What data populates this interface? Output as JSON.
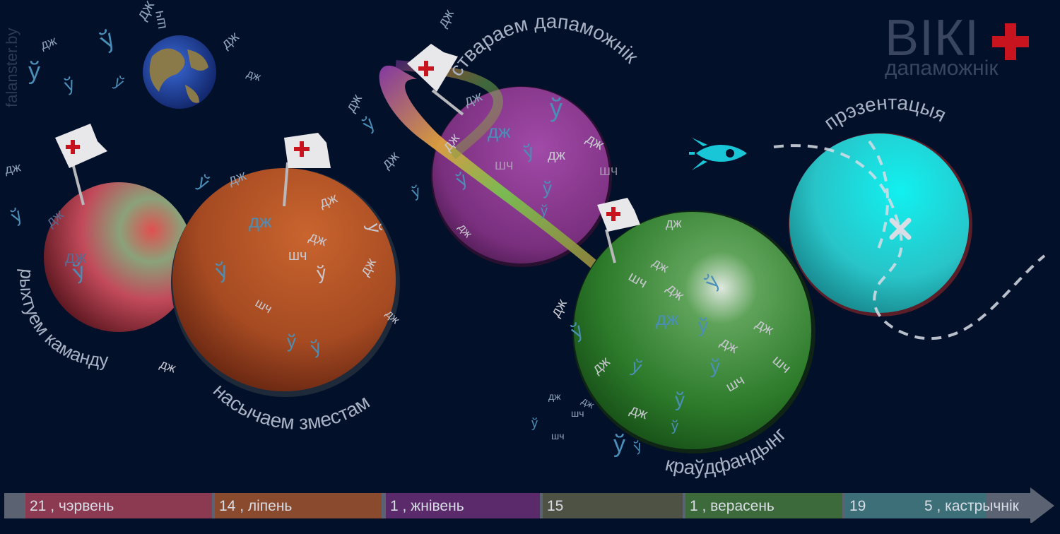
{
  "logo": {
    "wiki": "ВІКІ",
    "sub": "дапаможнік",
    "accent": "#c8141e"
  },
  "site": "falanster.by",
  "stages": {
    "team": "рыхтуем каманду",
    "content": "насычаем зместам",
    "guide": "ствараем дапаможнік",
    "crowdfunding": "краўдфандынг",
    "presentation": "прэзентацыя"
  },
  "letters": {
    "dzh": "дж",
    "u": "ў",
    "shch": "шч"
  },
  "timeline": {
    "segments": [
      {
        "label": "21 , чэрвень",
        "color": "#8b3a52"
      },
      {
        "label": "14 , ліпень",
        "color": "#8a4a2e"
      },
      {
        "label": "1 , жнівень",
        "color": "#5b2a6b"
      },
      {
        "label": "15",
        "color": "#4e5244"
      },
      {
        "label": "1 , верасень",
        "color": "#3d6a3a"
      },
      {
        "label": "19",
        "color": "#3d6f78"
      }
    ],
    "last_label": "5 , кастрычнік",
    "arrow_color": "#5b6272"
  }
}
